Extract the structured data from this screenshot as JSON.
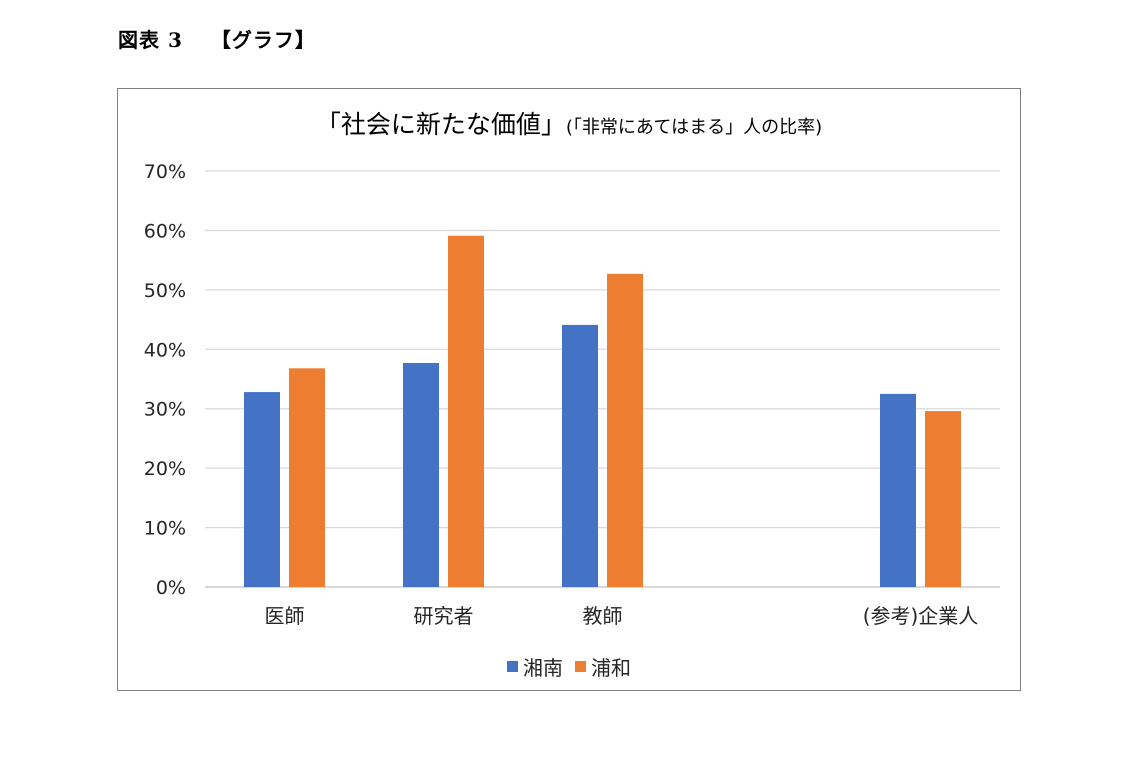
{
  "figure": {
    "label": "図表 3",
    "caption": "【グラフ】"
  },
  "chart_data": {
    "type": "bar",
    "title": "「社会に新たな価値」",
    "subtitle": "(「非常にあてはまる」人の比率)",
    "categories": [
      "医師",
      "研究者",
      "教師",
      "",
      "(参考)企業人"
    ],
    "series": [
      {
        "name": "湘南",
        "color": "#4472C4",
        "values": [
          0.328,
          0.377,
          0.441,
          null,
          0.325
        ]
      },
      {
        "name": "浦和",
        "color": "#ED7D31",
        "values": [
          0.368,
          0.591,
          0.527,
          null,
          0.296
        ]
      }
    ],
    "ylim": [
      0,
      0.7
    ],
    "yticks": [
      "0%",
      "10%",
      "20%",
      "30%",
      "40%",
      "50%",
      "60%",
      "70%"
    ],
    "grid": true,
    "legend": "bottom"
  }
}
